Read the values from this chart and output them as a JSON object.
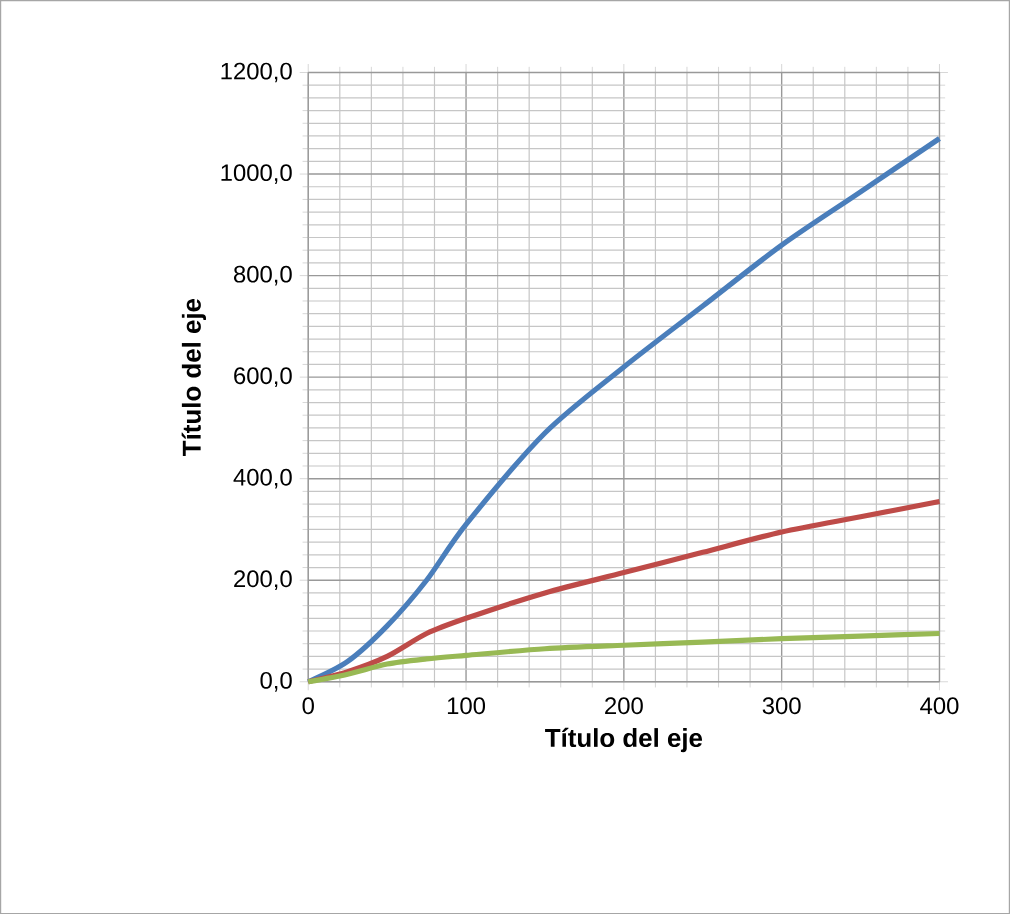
{
  "chart_data": {
    "type": "line",
    "xlabel": "Título del eje",
    "ylabel": "Título del eje",
    "x": [
      0,
      25,
      50,
      75,
      100,
      150,
      200,
      250,
      300,
      350,
      400
    ],
    "series": [
      {
        "color": "#4a7ebb",
        "values": [
          0,
          40,
          110,
          200,
          310,
          490,
          620,
          740,
          860,
          965,
          1070
        ]
      },
      {
        "color": "#be4b48",
        "values": [
          0,
          20,
          50,
          95,
          125,
          175,
          215,
          255,
          295,
          325,
          355
        ]
      },
      {
        "color": "#98b954",
        "values": [
          0,
          15,
          35,
          45,
          52,
          65,
          72,
          78,
          85,
          90,
          95
        ]
      }
    ],
    "xlim": [
      0,
      400
    ],
    "ylim": [
      0,
      1200
    ],
    "xticks": [
      0,
      100,
      200,
      300,
      400
    ],
    "yticks": [
      {
        "value": 0,
        "label": "0,0"
      },
      {
        "value": 200,
        "label": "200,0"
      },
      {
        "value": 400,
        "label": "400,0"
      },
      {
        "value": 600,
        "label": "600,0"
      },
      {
        "value": 800,
        "label": "800,0"
      },
      {
        "value": 1000,
        "label": "1000,0"
      },
      {
        "value": 1200,
        "label": "1200,0"
      }
    ],
    "grid": true,
    "marker": "none",
    "line_style": "solid"
  }
}
